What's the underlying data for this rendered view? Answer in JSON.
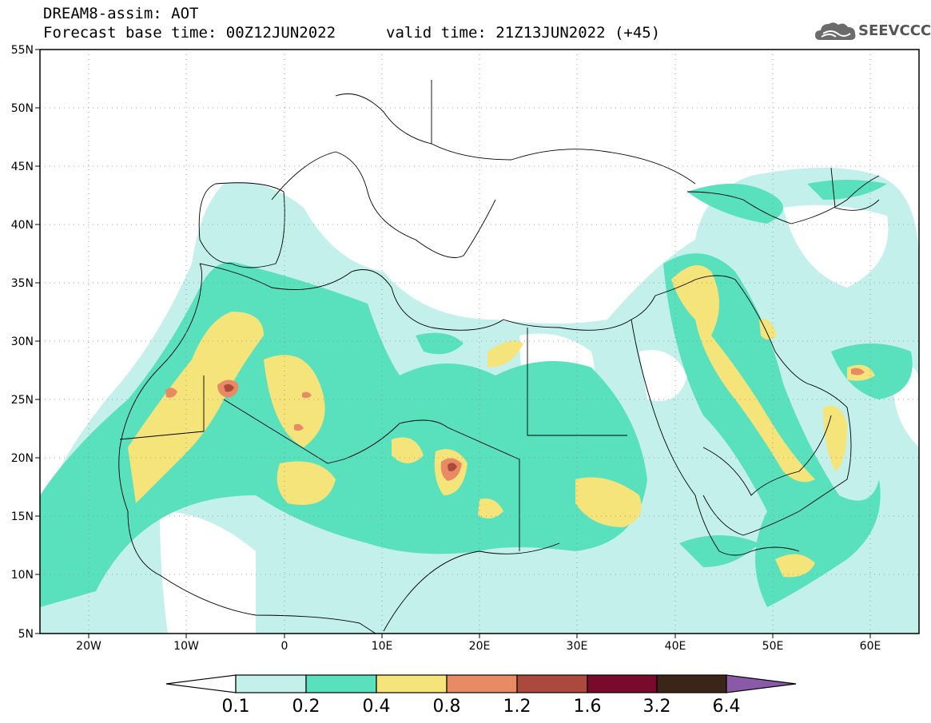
{
  "header": {
    "title": "DREAM8-assim: AOT",
    "base_time": "Forecast base time: 00Z12JUN2022",
    "valid_time": "valid time: 21Z13JUN2022 (+45)"
  },
  "logo": {
    "text": "SEEVCCC",
    "icon": "cloud-icon"
  },
  "axes": {
    "lat_labels": [
      "55N",
      "50N",
      "45N",
      "40N",
      "35N",
      "30N",
      "25N",
      "20N",
      "15N",
      "10N",
      "5N"
    ],
    "lon_labels": [
      "20W",
      "10W",
      "0",
      "10E",
      "20E",
      "30E",
      "40E",
      "50E",
      "60E"
    ],
    "lat_range": [
      5,
      55
    ],
    "lon_range": [
      -25,
      65
    ]
  },
  "colorbar": {
    "labels": [
      "0.1",
      "0.2",
      "0.4",
      "0.8",
      "1.2",
      "1.6",
      "3.2",
      "6.4"
    ],
    "colors": [
      "#c3f0ea",
      "#59e0bd",
      "#f4e47a",
      "#e88a63",
      "#ab4a3c",
      "#7a0a2c",
      "#3b2519",
      "#8a5aa8"
    ],
    "low_color": "#ffffff"
  },
  "palette": {
    "c1": "#c3f0ea",
    "c2": "#59e0bd",
    "c3": "#f4e47a",
    "c4": "#e88a63",
    "c5": "#ab4a3c"
  }
}
